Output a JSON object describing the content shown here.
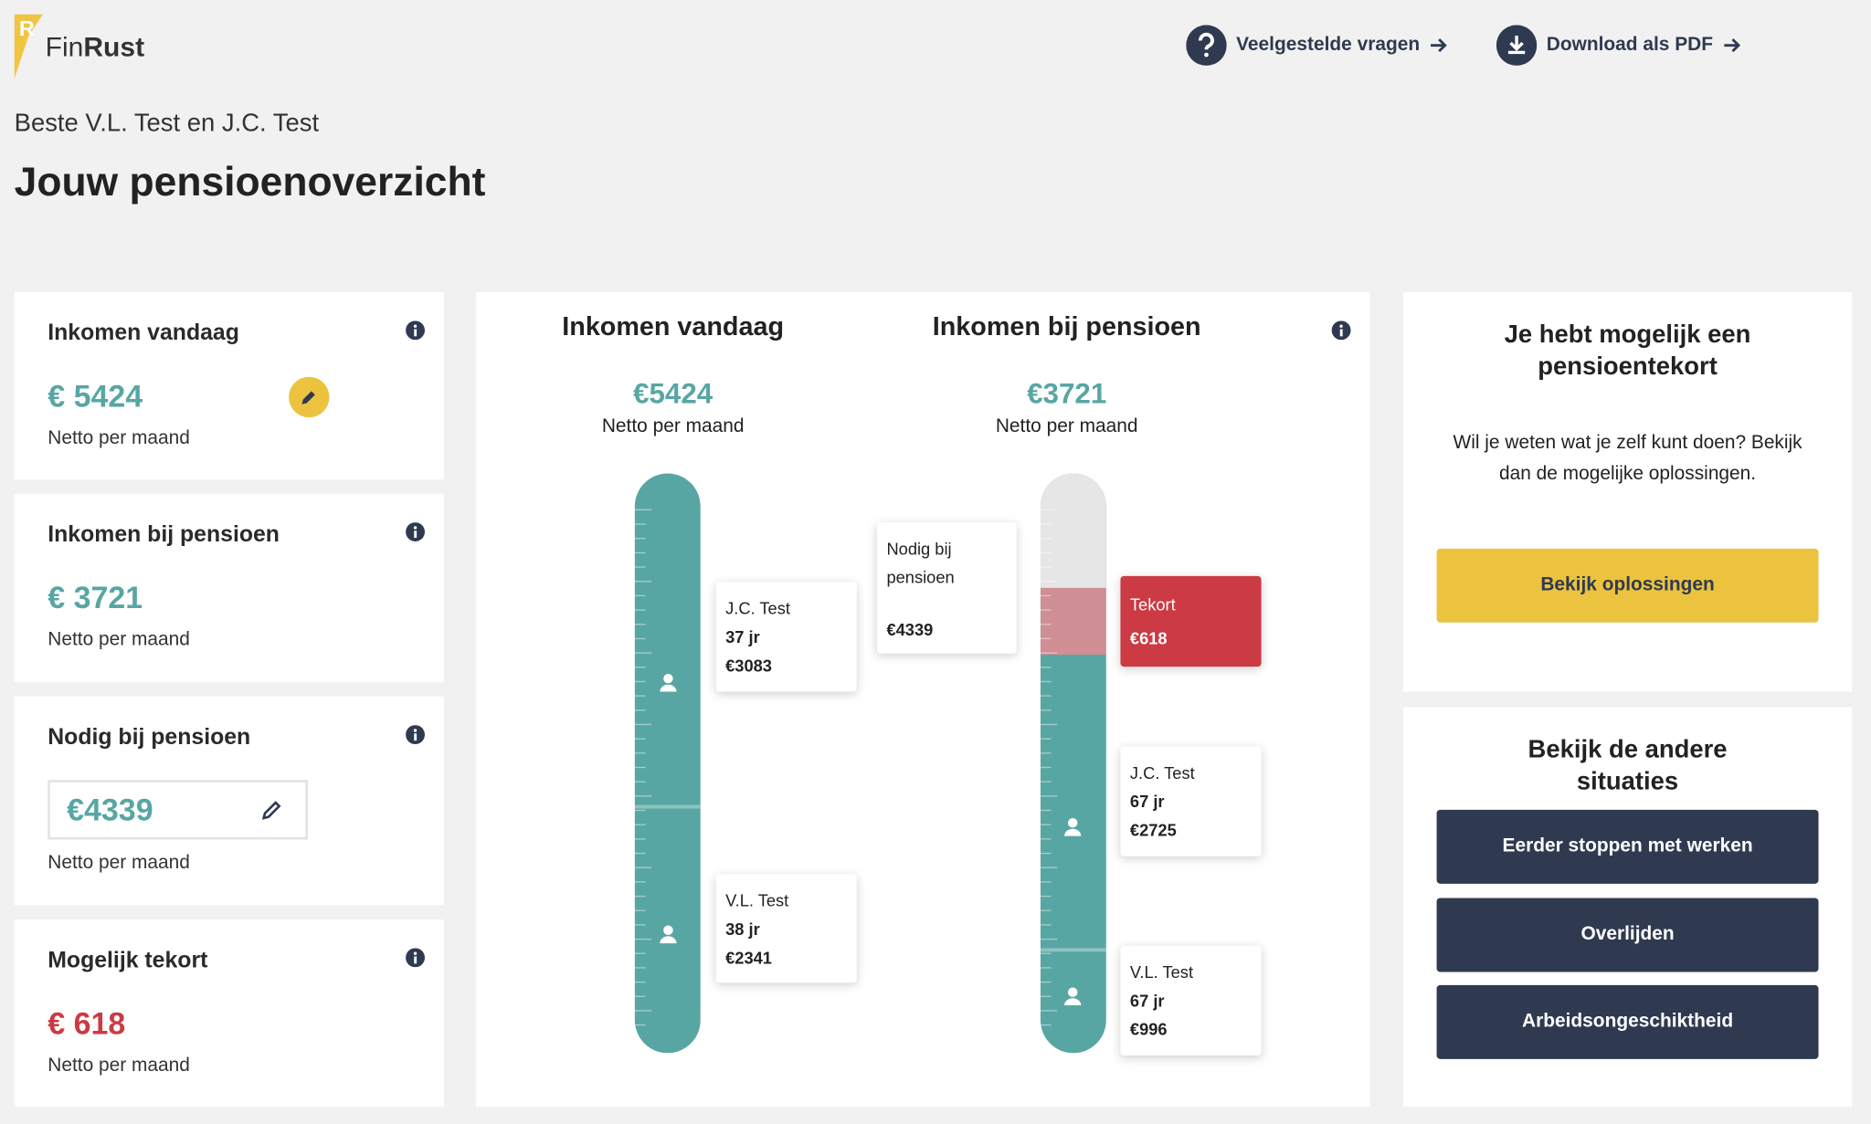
{
  "header": {
    "brand_light": "Fin",
    "brand_bold": "Rust",
    "links": [
      "Veelgestelde vragen",
      "Download als PDF"
    ]
  },
  "greeting": "Beste V.L. Test en J.C. Test",
  "title": "Jouw pensioenoverzicht",
  "cards": [
    {
      "title": "Inkomen vandaag",
      "amount": "€ 5424",
      "note": "Netto per maand"
    },
    {
      "title": "Inkomen bij pensioen",
      "amount": "€ 3721",
      "note": "Netto per maand"
    },
    {
      "title": "Nodig bij pensioen",
      "amount": "€4339",
      "note": "Netto per maand"
    },
    {
      "title": "Mogelijk tekort",
      "amount": "€ 618",
      "note": "Netto per maand"
    }
  ],
  "overview": {
    "columns": [
      {
        "title": "Inkomen vandaag",
        "amount": "€5424",
        "note": "Netto per maand"
      },
      {
        "title": "Inkomen bij pensioen",
        "amount": "€3721",
        "note": "Netto per maand"
      }
    ],
    "today": [
      {
        "name": "J.C. Test",
        "age": "37 jr",
        "amount": "€3083"
      },
      {
        "name": "V.L. Test",
        "age": "38 jr",
        "amount": "€2341"
      }
    ],
    "needed": {
      "label": "Nodig bij pensioen",
      "amount": "€4339"
    },
    "shortfall": {
      "label": "Tekort",
      "amount": "€618"
    },
    "pension": [
      {
        "name": "J.C. Test",
        "age": "67 jr",
        "amount": "€2725"
      },
      {
        "name": "V.L. Test",
        "age": "67 jr",
        "amount": "€996"
      }
    ]
  },
  "side": {
    "heading": "Je hebt mogelijk een pensioentekort",
    "text": "Wil je weten wat je zelf kunt doen? Bekijk dan de mogelijke oplossingen.",
    "button": "Bekijk oplossingen",
    "other_heading": "Bekijk de andere situaties",
    "situations": [
      "Eerder stoppen met werken",
      "Overlijden",
      "Arbeidsongeschiktheid"
    ]
  }
}
